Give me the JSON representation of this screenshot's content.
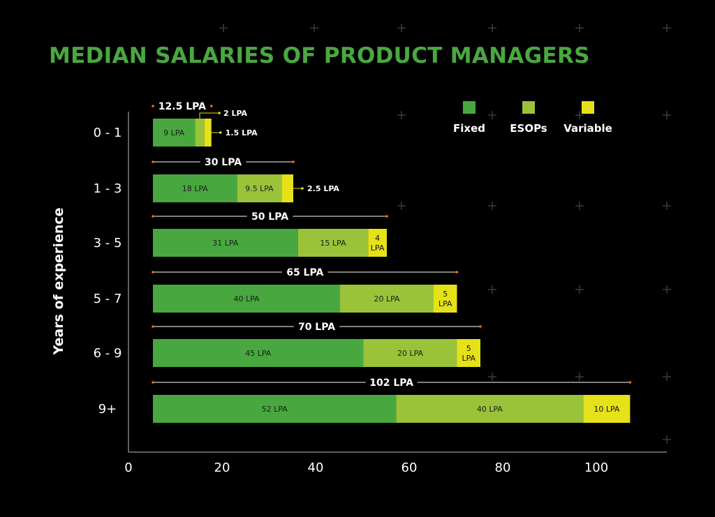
{
  "colors": {
    "background": "#000000",
    "title": "#49a83f",
    "fixed": "#48a83f",
    "esops": "#9ac33a",
    "variable": "#e6e21a",
    "total_marker": "#ff6a1a",
    "annotation_dot": "#e6e21a",
    "axis": "#bfbfbf",
    "text": "#ffffff"
  },
  "chart_data": {
    "type": "bar",
    "orientation": "horizontal",
    "stacked": true,
    "title": "MEDIAN SALARIES OF PRODUCT MANAGERS",
    "xlabel": "",
    "ylabel": "Years of experience",
    "xlim": [
      0,
      115
    ],
    "xticks": [
      0,
      20,
      40,
      60,
      80,
      100
    ],
    "legend": [
      "Fixed",
      "ESOPs",
      "Variable"
    ],
    "legend_position": "top-right",
    "grid": false,
    "categories": [
      "0 - 1",
      "1 - 3",
      "3 - 5",
      "5 - 7",
      "6 - 9",
      "9+"
    ],
    "totals": [
      "12.5 LPA",
      "30 LPA",
      "50 LPA",
      "65 LPA",
      "70 LPA",
      "102 LPA"
    ],
    "series": [
      {
        "name": "Fixed",
        "values": [
          9,
          18,
          31,
          40,
          45,
          52
        ],
        "labels": [
          "9 LPA",
          "18 LPA",
          "31 LPA",
          "40 LPA",
          "45 LPA",
          "52 LPA"
        ]
      },
      {
        "name": "ESOPs",
        "values": [
          2,
          9.5,
          15,
          20,
          20,
          40
        ],
        "labels": [
          "2 LPA",
          "9.5 LPA",
          "15 LPA",
          "20 LPA",
          "20 LPA",
          "40 LPA"
        ]
      },
      {
        "name": "Variable",
        "values": [
          1.5,
          2.5,
          4,
          5,
          5,
          10
        ],
        "labels": [
          "1.5 LPA",
          "2.5 LPA",
          "4 LPA",
          "5 LPA",
          "5 LPA",
          "10 LPA"
        ]
      }
    ]
  }
}
